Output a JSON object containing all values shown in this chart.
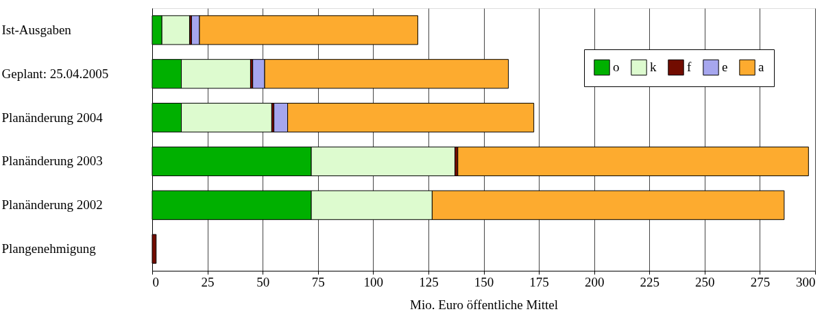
{
  "chart_data": {
    "type": "bar",
    "orientation": "horizontal",
    "stacked": true,
    "categories": [
      "Ist-Ausgaben",
      "Geplant: 25.04.2005",
      "Planänderung 2004",
      "Planänderung 2003",
      "Planänderung 2002",
      "Plangenehmigung"
    ],
    "series": [
      {
        "name": "o",
        "color": "#00b000",
        "values": [
          4.4,
          13.2,
          13.2,
          72,
          72,
          null
        ]
      },
      {
        "name": "k",
        "color": "#ddfbcf",
        "values": [
          12.5,
          31.3,
          40.9,
          65,
          54.7,
          null
        ]
      },
      {
        "name": "f",
        "color": "#720c00",
        "values": [
          0.9,
          1,
          1,
          1.3,
          null,
          1.8
        ]
      },
      {
        "name": "e",
        "color": "#a6a6ee",
        "values": [
          3.6,
          5.4,
          6.2,
          null,
          null,
          null
        ]
      },
      {
        "name": "a",
        "color": "#fdab2f",
        "values": [
          98.8,
          110.3,
          111.4,
          158.7,
          159.3,
          null
        ]
      }
    ],
    "xlim": [
      0,
      300
    ],
    "xticks": [
      0,
      25,
      50,
      75,
      100,
      125,
      150,
      175,
      200,
      225,
      250,
      275,
      300
    ],
    "xlabel": "Mio. Euro öffentliche Mittel",
    "grid": "x",
    "legend": "top right"
  }
}
